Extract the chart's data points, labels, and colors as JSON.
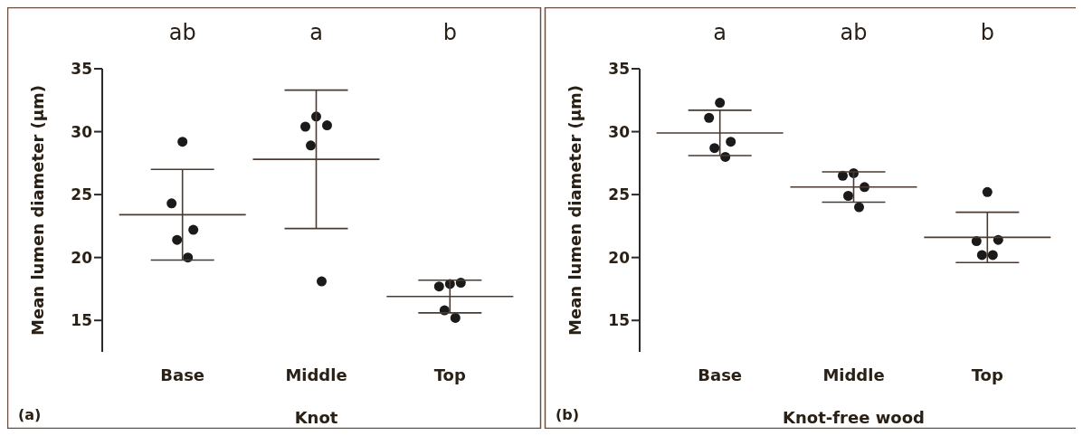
{
  "chart_data": [
    {
      "type": "scatter",
      "ylabel": "Mean lumen diameter (µm)",
      "xlabel": "Knot",
      "categories": [
        "Base",
        "Middle",
        "Top"
      ],
      "ylim": [
        12.5,
        35
      ],
      "yticks": [
        15,
        20,
        25,
        30,
        35
      ],
      "grid": false,
      "series": [
        {
          "type": "scatter",
          "marker": "circle",
          "color": "#1a1a1a",
          "x": [
            "Base",
            "Base",
            "Base",
            "Base",
            "Base",
            "Middle",
            "Middle",
            "Middle",
            "Middle",
            "Middle",
            "Top",
            "Top",
            "Top",
            "Top",
            "Top"
          ],
          "values": [
            29.2,
            24.3,
            22.2,
            21.4,
            20.0,
            31.2,
            30.4,
            30.5,
            28.9,
            18.1,
            17.9,
            17.7,
            18.0,
            15.8,
            15.2
          ]
        },
        {
          "type": "box",
          "color": "#4a3a30",
          "boxes": [
            {
              "low": 19.8,
              "q1": 23.4,
              "median": 23.4,
              "q3": 23.4,
              "high": 27.0
            },
            {
              "low": 22.3,
              "q1": 27.8,
              "median": 27.8,
              "q3": 27.8,
              "high": 33.3
            },
            {
              "low": 15.6,
              "q1": 16.9,
              "median": 16.9,
              "q3": 16.9,
              "high": 18.2
            }
          ]
        }
      ],
      "annotations": [
        "ab",
        "a",
        "b",
        "(a)"
      ]
    },
    {
      "type": "scatter",
      "ylabel": "Mean lumen diameter (µm)",
      "xlabel": "Knot-free wood",
      "categories": [
        "Base",
        "Middle",
        "Top"
      ],
      "ylim": [
        12.5,
        35
      ],
      "yticks": [
        15,
        20,
        25,
        30,
        35
      ],
      "grid": false,
      "series": [
        {
          "type": "scatter",
          "marker": "circle",
          "color": "#1a1a1a",
          "x": [
            "Base",
            "Base",
            "Base",
            "Base",
            "Base",
            "Middle",
            "Middle",
            "Middle",
            "Middle",
            "Middle",
            "Top",
            "Top",
            "Top",
            "Top",
            "Top"
          ],
          "values": [
            32.3,
            31.1,
            29.2,
            28.7,
            28.0,
            26.7,
            26.5,
            25.6,
            24.9,
            24.0,
            25.2,
            21.3,
            21.4,
            20.2,
            20.2
          ]
        },
        {
          "type": "box",
          "color": "#4a3a30",
          "boxes": [
            {
              "low": 28.1,
              "q1": 29.9,
              "median": 29.9,
              "q3": 29.9,
              "high": 31.7
            },
            {
              "low": 24.4,
              "q1": 25.6,
              "median": 25.6,
              "q3": 25.6,
              "high": 26.8
            },
            {
              "low": 19.6,
              "q1": 21.6,
              "median": 21.6,
              "q3": 21.6,
              "high": 23.6
            }
          ]
        }
      ],
      "annotations": [
        "a",
        "ab",
        "b",
        "(b)"
      ]
    }
  ]
}
